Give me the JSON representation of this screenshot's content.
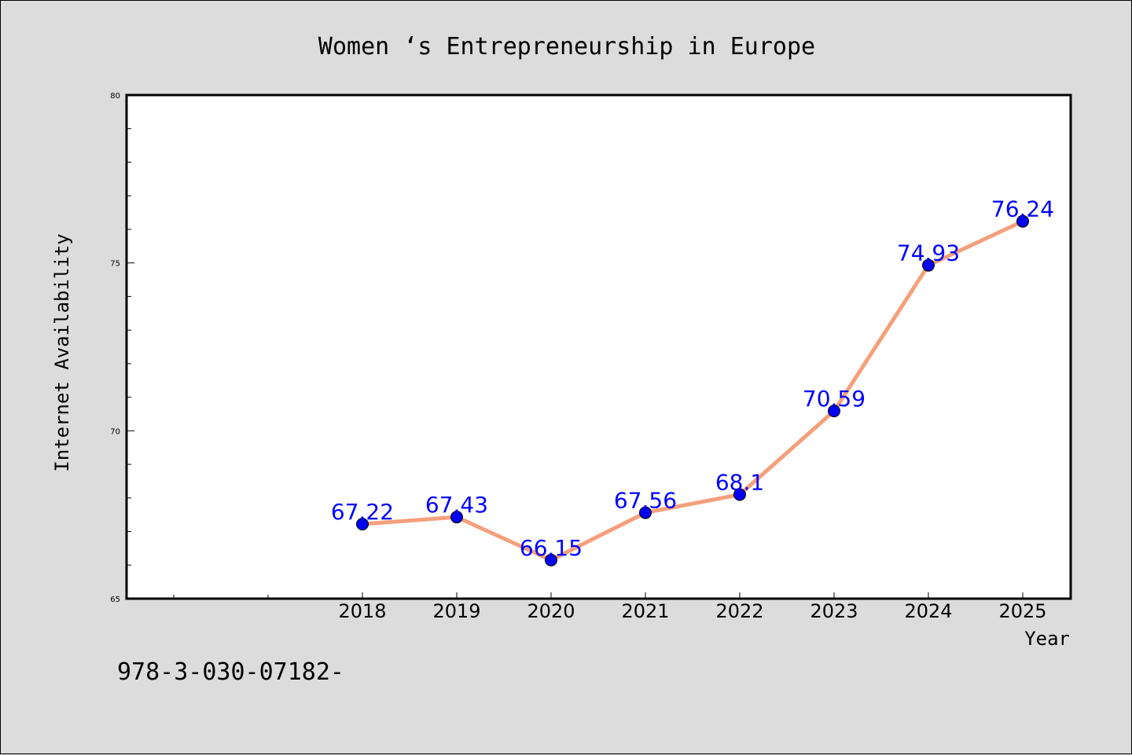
{
  "chart_data": {
    "type": "line",
    "title": "Women ‘s Entrepreneurship in Europe",
    "xlabel": "Year",
    "ylabel": "Internet Availability",
    "x": [
      "2018",
      "2019",
      "2020",
      "2021",
      "2022",
      "2023",
      "2024",
      "2025"
    ],
    "series": [
      {
        "values": [
          67.22,
          67.43,
          66.15,
          67.56,
          68.1,
          70.59,
          74.93,
          76.24
        ],
        "labels": [
          "67.22",
          "67.43",
          "66.15",
          "67.56",
          "68.1",
          "70.59",
          "74.93",
          "76.24"
        ],
        "line_color": "#f4a07c",
        "marker_color": "#0000ee",
        "label_color": "#0000ff"
      }
    ],
    "ylim": [
      65,
      80
    ],
    "y_ticks": [
      "65",
      "70",
      "75",
      "80"
    ],
    "grid": false,
    "legend": false
  },
  "footer_text": "978-3-030-07182-"
}
